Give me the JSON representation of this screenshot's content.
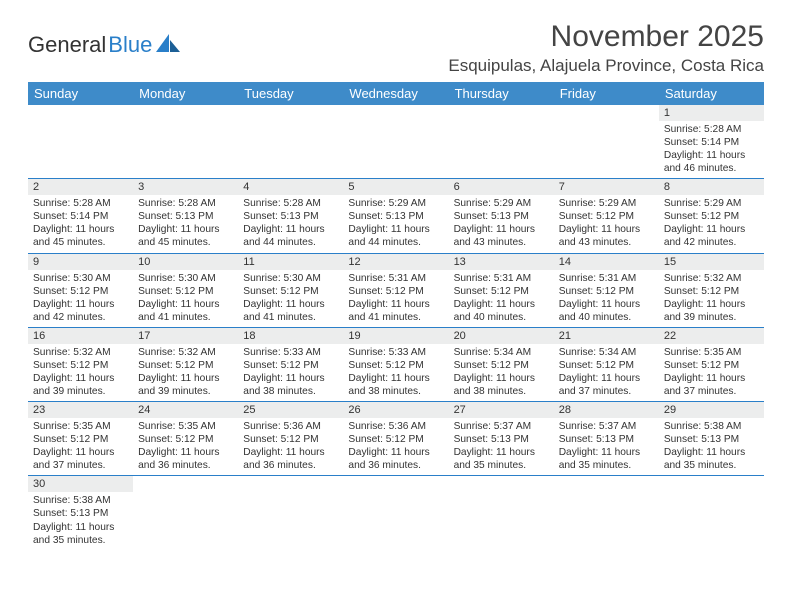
{
  "brand": {
    "name_part1": "General",
    "name_part2": "Blue"
  },
  "title": "November 2025",
  "location": "Esquipulas, Alajuela Province, Costa Rica",
  "weekdays": [
    "Sunday",
    "Monday",
    "Tuesday",
    "Wednesday",
    "Thursday",
    "Friday",
    "Saturday"
  ],
  "colors": {
    "header_bg": "#3e8bc9",
    "header_text": "#ffffff",
    "daynum_bg": "#eceded",
    "cell_border": "#2a7fc9",
    "text": "#333333",
    "brand_blue": "#2a7fc9"
  },
  "weeks": [
    [
      null,
      null,
      null,
      null,
      null,
      null,
      {
        "n": "1",
        "sunrise": "5:28 AM",
        "sunset": "5:14 PM",
        "daylight": "11 hours and 46 minutes."
      }
    ],
    [
      {
        "n": "2",
        "sunrise": "5:28 AM",
        "sunset": "5:14 PM",
        "daylight": "11 hours and 45 minutes."
      },
      {
        "n": "3",
        "sunrise": "5:28 AM",
        "sunset": "5:13 PM",
        "daylight": "11 hours and 45 minutes."
      },
      {
        "n": "4",
        "sunrise": "5:28 AM",
        "sunset": "5:13 PM",
        "daylight": "11 hours and 44 minutes."
      },
      {
        "n": "5",
        "sunrise": "5:29 AM",
        "sunset": "5:13 PM",
        "daylight": "11 hours and 44 minutes."
      },
      {
        "n": "6",
        "sunrise": "5:29 AM",
        "sunset": "5:13 PM",
        "daylight": "11 hours and 43 minutes."
      },
      {
        "n": "7",
        "sunrise": "5:29 AM",
        "sunset": "5:12 PM",
        "daylight": "11 hours and 43 minutes."
      },
      {
        "n": "8",
        "sunrise": "5:29 AM",
        "sunset": "5:12 PM",
        "daylight": "11 hours and 42 minutes."
      }
    ],
    [
      {
        "n": "9",
        "sunrise": "5:30 AM",
        "sunset": "5:12 PM",
        "daylight": "11 hours and 42 minutes."
      },
      {
        "n": "10",
        "sunrise": "5:30 AM",
        "sunset": "5:12 PM",
        "daylight": "11 hours and 41 minutes."
      },
      {
        "n": "11",
        "sunrise": "5:30 AM",
        "sunset": "5:12 PM",
        "daylight": "11 hours and 41 minutes."
      },
      {
        "n": "12",
        "sunrise": "5:31 AM",
        "sunset": "5:12 PM",
        "daylight": "11 hours and 41 minutes."
      },
      {
        "n": "13",
        "sunrise": "5:31 AM",
        "sunset": "5:12 PM",
        "daylight": "11 hours and 40 minutes."
      },
      {
        "n": "14",
        "sunrise": "5:31 AM",
        "sunset": "5:12 PM",
        "daylight": "11 hours and 40 minutes."
      },
      {
        "n": "15",
        "sunrise": "5:32 AM",
        "sunset": "5:12 PM",
        "daylight": "11 hours and 39 minutes."
      }
    ],
    [
      {
        "n": "16",
        "sunrise": "5:32 AM",
        "sunset": "5:12 PM",
        "daylight": "11 hours and 39 minutes."
      },
      {
        "n": "17",
        "sunrise": "5:32 AM",
        "sunset": "5:12 PM",
        "daylight": "11 hours and 39 minutes."
      },
      {
        "n": "18",
        "sunrise": "5:33 AM",
        "sunset": "5:12 PM",
        "daylight": "11 hours and 38 minutes."
      },
      {
        "n": "19",
        "sunrise": "5:33 AM",
        "sunset": "5:12 PM",
        "daylight": "11 hours and 38 minutes."
      },
      {
        "n": "20",
        "sunrise": "5:34 AM",
        "sunset": "5:12 PM",
        "daylight": "11 hours and 38 minutes."
      },
      {
        "n": "21",
        "sunrise": "5:34 AM",
        "sunset": "5:12 PM",
        "daylight": "11 hours and 37 minutes."
      },
      {
        "n": "22",
        "sunrise": "5:35 AM",
        "sunset": "5:12 PM",
        "daylight": "11 hours and 37 minutes."
      }
    ],
    [
      {
        "n": "23",
        "sunrise": "5:35 AM",
        "sunset": "5:12 PM",
        "daylight": "11 hours and 37 minutes."
      },
      {
        "n": "24",
        "sunrise": "5:35 AM",
        "sunset": "5:12 PM",
        "daylight": "11 hours and 36 minutes."
      },
      {
        "n": "25",
        "sunrise": "5:36 AM",
        "sunset": "5:12 PM",
        "daylight": "11 hours and 36 minutes."
      },
      {
        "n": "26",
        "sunrise": "5:36 AM",
        "sunset": "5:12 PM",
        "daylight": "11 hours and 36 minutes."
      },
      {
        "n": "27",
        "sunrise": "5:37 AM",
        "sunset": "5:13 PM",
        "daylight": "11 hours and 35 minutes."
      },
      {
        "n": "28",
        "sunrise": "5:37 AM",
        "sunset": "5:13 PM",
        "daylight": "11 hours and 35 minutes."
      },
      {
        "n": "29",
        "sunrise": "5:38 AM",
        "sunset": "5:13 PM",
        "daylight": "11 hours and 35 minutes."
      }
    ],
    [
      {
        "n": "30",
        "sunrise": "5:38 AM",
        "sunset": "5:13 PM",
        "daylight": "11 hours and 35 minutes."
      },
      null,
      null,
      null,
      null,
      null,
      null
    ]
  ],
  "labels": {
    "sunrise": "Sunrise: ",
    "sunset": "Sunset: ",
    "daylight": "Daylight: "
  }
}
